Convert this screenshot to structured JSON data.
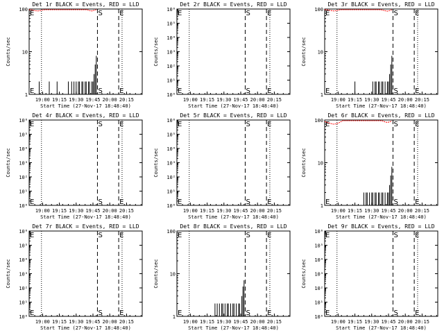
{
  "chart_data": [
    {
      "type": "line",
      "title": "Det 1r BLACK = Events, RED = LLD",
      "xlabel": "Start Time (27-Nov-17 18:48:40)",
      "ylabel": "Counts/sec",
      "y_scale": "log",
      "ylim": [
        1,
        100
      ],
      "y_ticks": [
        "1",
        "10",
        "100"
      ],
      "x_ticks": [
        "19:00",
        "19:15",
        "19:30",
        "19:45",
        "20:00",
        "20:15"
      ],
      "x_range": [
        "18:48",
        "20:29"
      ],
      "markers": {
        "E_left": "E",
        "S": "S",
        "E_right": "E"
      },
      "series": [
        {
          "name": "Events",
          "color": "#000000",
          "times": [
            "18:48",
            "18:49",
            "18:50",
            "18:51",
            "18:52",
            "18:53",
            "18:54",
            "18:55",
            "18:56",
            "18:57",
            "18:58",
            "18:59",
            "19:00",
            "19:01",
            "19:02",
            "19:03",
            "19:04",
            "19:05",
            "19:06",
            "19:07",
            "19:08",
            "19:09",
            "19:10",
            "19:11",
            "19:12",
            "19:13",
            "19:14",
            "19:15",
            "19:16",
            "19:17",
            "19:18",
            "19:19",
            "19:20",
            "19:21",
            "19:22",
            "19:23",
            "19:24",
            "19:25",
            "19:26",
            "19:27",
            "19:28",
            "19:29",
            "19:30",
            "19:31",
            "19:32",
            "19:33",
            "19:34",
            "19:35",
            "19:36",
            "19:37",
            "19:38",
            "19:39",
            "19:40",
            "19:41",
            "19:42",
            "19:43",
            "19:44",
            "19:45",
            "19:46",
            "19:47",
            "19:48"
          ],
          "values": [
            1,
            1,
            1,
            1,
            1,
            1,
            1,
            1,
            1,
            2,
            1,
            1,
            1,
            1,
            1,
            1,
            1,
            1,
            2,
            1,
            1,
            1,
            1,
            1,
            1,
            2,
            1,
            1,
            1,
            1,
            1,
            1,
            1,
            1,
            1,
            2,
            1,
            1,
            2,
            1,
            2,
            1,
            2,
            1,
            2,
            2,
            1,
            2,
            2,
            1,
            2,
            2,
            1,
            2,
            2,
            1,
            2,
            2,
            3,
            5,
            8
          ]
        },
        {
          "name": "LLD",
          "color": "#ff0000",
          "times": [
            "18:48",
            "18:50",
            "18:52",
            "18:54",
            "18:56",
            "18:58",
            "19:00",
            "19:02",
            "19:04",
            "19:06",
            "19:08",
            "19:10",
            "19:12",
            "19:14",
            "19:16",
            "19:18",
            "19:20",
            "19:22",
            "19:24",
            "19:26",
            "19:28",
            "19:30",
            "19:32",
            "19:34",
            "19:36",
            "19:38",
            "19:40",
            "19:42",
            "19:44",
            "19:46",
            "19:48"
          ],
          "values": [
            98,
            96,
            93,
            91,
            90,
            92,
            95,
            98,
            100,
            100,
            100,
            100,
            100,
            100,
            100,
            100,
            100,
            100,
            100,
            100,
            100,
            100,
            100,
            100,
            100,
            100,
            96,
            92,
            90,
            93,
            98
          ]
        }
      ]
    },
    {
      "type": "line",
      "title": "Det 2r BLACK = Events, RED = LLD",
      "xlabel": "Start Time (27-Nov-17 18:48:40)",
      "ylabel": "Counts/sec",
      "y_scale": "log",
      "ylim": [
        1,
        1000000
      ],
      "y_ticks": [
        "10⁰",
        "10¹",
        "10²",
        "10³",
        "10⁴",
        "10⁵",
        "10⁶"
      ],
      "x_ticks": [
        "19:00",
        "19:15",
        "19:30",
        "19:45",
        "20:00",
        "20:15"
      ],
      "x_range": [
        "18:48",
        "20:29"
      ],
      "markers": {
        "E_left": "E",
        "S": "S",
        "E_right": "E"
      },
      "series": []
    },
    {
      "type": "line",
      "title": "Det 3r BLACK = Events, RED = LLD",
      "xlabel": "Start Time (27-Nov-17 18:48:40)",
      "ylabel": "Counts/sec",
      "y_scale": "log",
      "ylim": [
        1,
        100
      ],
      "y_ticks": [
        "1",
        "10",
        "100"
      ],
      "x_ticks": [
        "19:00",
        "19:15",
        "19:30",
        "19:45",
        "20:00",
        "20:15"
      ],
      "x_range": [
        "18:48",
        "20:29"
      ],
      "markers": {
        "E_left": "E",
        "S": "S",
        "E_right": "E"
      },
      "series": [
        {
          "name": "Events",
          "color": "#000000",
          "times": [
            "19:14",
            "19:15",
            "19:25",
            "19:26",
            "19:30",
            "19:31",
            "19:32",
            "19:33",
            "19:34",
            "19:35",
            "19:36",
            "19:37",
            "19:38",
            "19:39",
            "19:40",
            "19:41",
            "19:42",
            "19:43",
            "19:44",
            "19:45",
            "19:46",
            "19:47",
            "19:48"
          ],
          "values": [
            1,
            2,
            1,
            1,
            1,
            2,
            1,
            2,
            2,
            1,
            2,
            2,
            1,
            2,
            2,
            1,
            2,
            1,
            2,
            2,
            3,
            5,
            8
          ]
        },
        {
          "name": "LLD",
          "color": "#ff0000",
          "times": [
            "18:48",
            "18:50",
            "18:52",
            "18:54",
            "18:56",
            "18:58",
            "19:00",
            "19:02",
            "19:04",
            "19:06",
            "19:08",
            "19:10",
            "19:12",
            "19:14",
            "19:16",
            "19:18",
            "19:20",
            "19:22",
            "19:24",
            "19:26",
            "19:28",
            "19:30",
            "19:32",
            "19:34",
            "19:36",
            "19:38",
            "19:40",
            "19:42",
            "19:44",
            "19:46",
            "19:48"
          ],
          "values": [
            99,
            97,
            94,
            92,
            90,
            91,
            94,
            97,
            100,
            100,
            100,
            100,
            100,
            100,
            100,
            100,
            100,
            100,
            100,
            100,
            100,
            100,
            100,
            100,
            100,
            98,
            94,
            91,
            89,
            92,
            97
          ]
        }
      ]
    },
    {
      "type": "line",
      "title": "Det 4r BLACK = Events, RED = LLD",
      "xlabel": "Start Time (27-Nov-17 18:48:40)",
      "ylabel": "Counts/sec",
      "y_scale": "log",
      "ylim": [
        1,
        1000000
      ],
      "y_ticks": [
        "10⁰",
        "10¹",
        "10²",
        "10³",
        "10⁴",
        "10⁵",
        "10⁶"
      ],
      "x_ticks": [
        "19:00",
        "19:15",
        "19:30",
        "19:45",
        "20:00",
        "20:15"
      ],
      "x_range": [
        "18:48",
        "20:29"
      ],
      "markers": {
        "E_left": "E",
        "S": "S",
        "E_right": "E"
      },
      "series": []
    },
    {
      "type": "line",
      "title": "Det 5r BLACK = Events, RED = LLD",
      "xlabel": "Start Time (27-Nov-17 18:48:40)",
      "ylabel": "Counts/sec",
      "y_scale": "log",
      "ylim": [
        1,
        1000000
      ],
      "y_ticks": [
        "10⁰",
        "10¹",
        "10²",
        "10³",
        "10⁴",
        "10⁵",
        "10⁶"
      ],
      "x_ticks": [
        "19:00",
        "19:15",
        "19:30",
        "19:45",
        "20:00",
        "20:15"
      ],
      "x_range": [
        "18:48",
        "20:29"
      ],
      "markers": {
        "E_left": "E",
        "S": "S",
        "E_right": "E"
      },
      "series": []
    },
    {
      "type": "line",
      "title": "Det 6r BLACK = Events, RED = LLD",
      "xlabel": "Start Time (27-Nov-17 18:48:40)",
      "ylabel": "Counts/sec",
      "y_scale": "log",
      "ylim": [
        1,
        100
      ],
      "y_ticks": [
        "1",
        "10",
        "100"
      ],
      "x_ticks": [
        "19:00",
        "19:15",
        "19:30",
        "19:45",
        "20:00",
        "20:15"
      ],
      "x_range": [
        "18:48",
        "20:29"
      ],
      "markers": {
        "E_left": "E",
        "S": "S",
        "E_right": "E"
      },
      "series": [
        {
          "name": "Events",
          "color": "#000000",
          "times": [
            "19:22",
            "19:23",
            "19:24",
            "19:25",
            "19:26",
            "19:27",
            "19:28",
            "19:29",
            "19:30",
            "19:31",
            "19:32",
            "19:33",
            "19:34",
            "19:35",
            "19:36",
            "19:37",
            "19:38",
            "19:39",
            "19:40",
            "19:41",
            "19:42",
            "19:43",
            "19:44",
            "19:45",
            "19:46",
            "19:47",
            "19:48"
          ],
          "values": [
            1,
            2,
            1,
            2,
            2,
            1,
            2,
            1,
            2,
            2,
            1,
            2,
            2,
            1,
            2,
            2,
            1,
            2,
            2,
            1,
            2,
            1,
            2,
            2,
            3,
            5,
            8
          ]
        },
        {
          "name": "LLD",
          "color": "#ff0000",
          "times": [
            "18:48",
            "18:50",
            "18:52",
            "18:54",
            "18:56",
            "18:58",
            "19:00",
            "19:02",
            "19:04",
            "19:06",
            "19:08",
            "19:10",
            "19:12",
            "19:14",
            "19:16",
            "19:18",
            "19:20",
            "19:22",
            "19:24",
            "19:26",
            "19:28",
            "19:30",
            "19:32",
            "19:34",
            "19:36",
            "19:38",
            "19:40",
            "19:42",
            "19:44",
            "19:46",
            "19:48"
          ],
          "values": [
            92,
            88,
            85,
            82,
            80,
            81,
            84,
            90,
            96,
            100,
            100,
            100,
            100,
            100,
            100,
            100,
            100,
            100,
            100,
            100,
            100,
            100,
            100,
            100,
            100,
            100,
            95,
            90,
            88,
            90,
            96
          ]
        }
      ]
    },
    {
      "type": "line",
      "title": "Det 7r BLACK = Events, RED = LLD",
      "xlabel": "Start Time (27-Nov-17 18:48:40)",
      "ylabel": "Counts/sec",
      "y_scale": "log",
      "ylim": [
        1,
        1000000
      ],
      "y_ticks": [
        "10⁰",
        "10¹",
        "10²",
        "10³",
        "10⁴",
        "10⁵",
        "10⁶"
      ],
      "x_ticks": [
        "19:00",
        "19:15",
        "19:30",
        "19:45",
        "20:00",
        "20:15"
      ],
      "x_range": [
        "18:48",
        "20:29"
      ],
      "markers": {
        "E_left": "E",
        "S": "S",
        "E_right": "E"
      },
      "series": []
    },
    {
      "type": "line",
      "title": "Det 8r BLACK = Events, RED = LLD",
      "xlabel": "Start Time (27-Nov-17 18:48:40)",
      "ylabel": "Counts/sec",
      "y_scale": "log",
      "ylim": [
        1,
        100
      ],
      "y_ticks": [
        "1",
        "10",
        "100"
      ],
      "x_ticks": [
        "19:00",
        "19:15",
        "19:30",
        "19:45",
        "20:00",
        "20:15"
      ],
      "x_range": [
        "18:48",
        "20:29"
      ],
      "markers": {
        "E_left": "E",
        "S": "S",
        "E_right": "E"
      },
      "series": [
        {
          "name": "Events",
          "color": "#000000",
          "times": [
            "19:21",
            "19:22",
            "19:23",
            "19:24",
            "19:25",
            "19:26",
            "19:27",
            "19:28",
            "19:29",
            "19:30",
            "19:31",
            "19:32",
            "19:33",
            "19:34",
            "19:35",
            "19:36",
            "19:37",
            "19:38",
            "19:39",
            "19:40",
            "19:41",
            "19:42",
            "19:43",
            "19:44",
            "19:45",
            "19:46",
            "19:47",
            "19:48"
          ],
          "values": [
            1,
            2,
            1,
            2,
            1,
            2,
            1,
            2,
            2,
            1,
            2,
            1,
            2,
            2,
            1,
            2,
            1,
            2,
            2,
            1,
            2,
            1,
            2,
            2,
            1,
            3,
            5,
            7
          ]
        }
      ]
    },
    {
      "type": "line",
      "title": "Det 9r BLACK = Events, RED = LLD",
      "xlabel": "Start Time (27-Nov-17 18:48:40)",
      "ylabel": "Counts/sec",
      "y_scale": "log",
      "ylim": [
        1,
        1000000
      ],
      "y_ticks": [
        "10⁰",
        "10¹",
        "10²",
        "10³",
        "10⁴",
        "10⁵",
        "10⁶"
      ],
      "x_ticks": [
        "19:00",
        "19:15",
        "19:30",
        "19:45",
        "20:00",
        "20:15"
      ],
      "x_range": [
        "18:48",
        "20:29"
      ],
      "markers": {
        "E_left": "E",
        "S": "S",
        "E_right": "E"
      },
      "series": []
    }
  ]
}
